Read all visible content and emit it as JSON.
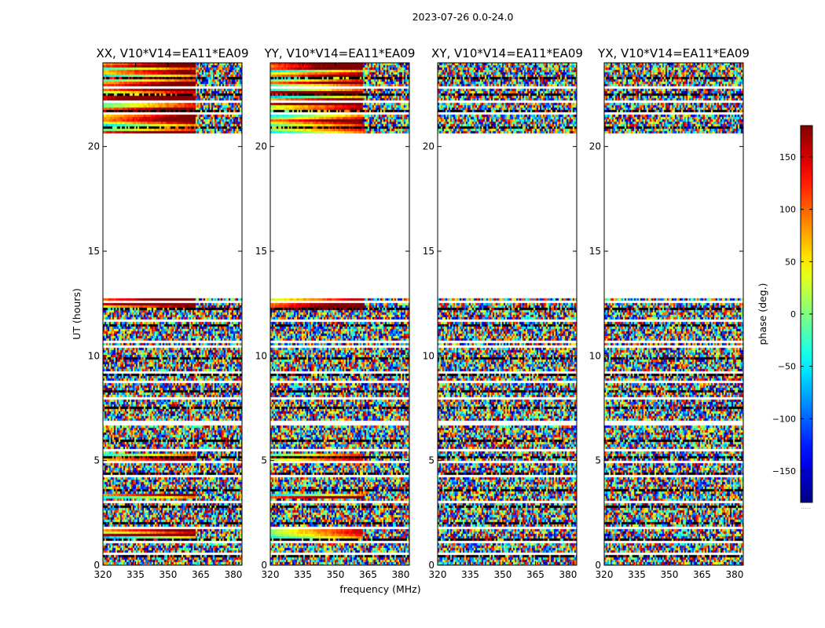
{
  "figure": {
    "suptitle": "2023-07-26 0.0-24.0",
    "xlabel": "frequency (MHz)",
    "ylabel": "UT (hours)",
    "colorbar_label": "phase (deg.)",
    "colorbar_footer": "......"
  },
  "chart_data": {
    "type": "heatmap",
    "colormap": "jet",
    "value_quantity": "phase (deg.)",
    "clim": [
      -180,
      180
    ],
    "colorbar_ticks": [
      150,
      100,
      50,
      0,
      -50,
      -100,
      -150
    ],
    "colorbar_tick_labels": [
      "150",
      "100",
      "50",
      "0",
      "−50",
      "−100",
      "−150"
    ],
    "xlim": [
      320,
      384
    ],
    "ylim": [
      0,
      24
    ],
    "x_ticks": [
      320,
      335,
      350,
      365,
      380
    ],
    "y_ticks": [
      0,
      5,
      10,
      15,
      20
    ],
    "data_gap_ut_hours": [
      12.75,
      20.7
    ],
    "panels": [
      {
        "title": "XX, V10*V14=EA11*EA09",
        "coherent_segments_ut_hours": [
          [
            20.7,
            24.0
          ],
          [
            12.3,
            12.75
          ],
          [
            4.9,
            5.4
          ],
          [
            3.2,
            3.5
          ],
          [
            1.3,
            1.8
          ]
        ],
        "coherent_freq_edge_mhz": 362
      },
      {
        "title": "YY, V10*V14=EA11*EA09",
        "coherent_segments_ut_hours": [
          [
            20.7,
            24.0
          ],
          [
            12.3,
            12.75
          ],
          [
            4.9,
            5.4
          ],
          [
            3.2,
            3.5
          ],
          [
            1.3,
            1.8
          ]
        ],
        "coherent_freq_edge_mhz": 362
      },
      {
        "title": "XY, V10*V14=EA11*EA09",
        "coherent_segments_ut_hours": [],
        "coherent_freq_edge_mhz": null
      },
      {
        "title": "YX, V10*V14=EA11*EA09",
        "coherent_segments_ut_hours": [],
        "coherent_freq_edge_mhz": null
      }
    ]
  }
}
